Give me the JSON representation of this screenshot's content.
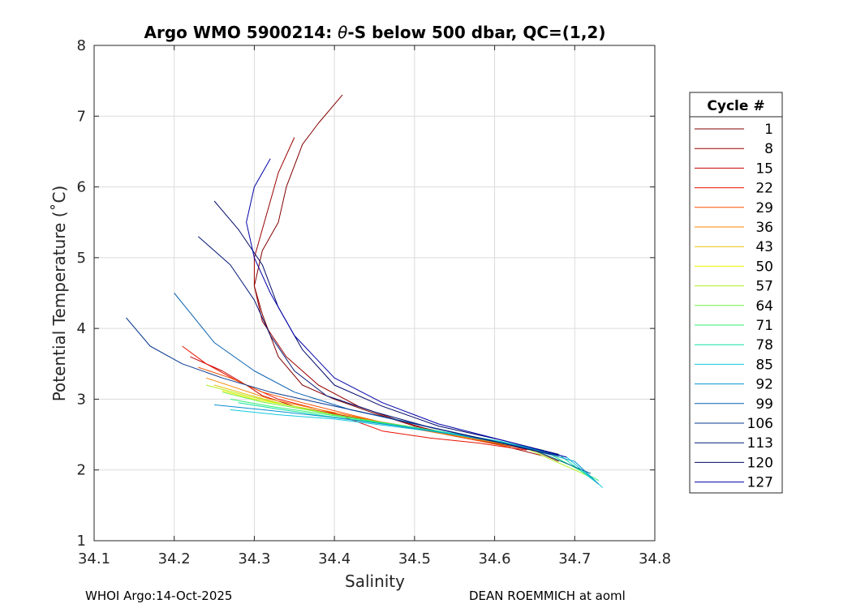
{
  "chart_data": {
    "type": "line",
    "title_parts": [
      "Argo WMO 5900214: ",
      "θ",
      "-S below 500 dbar,  QC=(1,2)"
    ],
    "xlabel": "Salinity",
    "ylabel": "Potential Temperature (˚C)",
    "xlim": [
      34.1,
      34.8
    ],
    "ylim": [
      1,
      8
    ],
    "xticks": [
      "34.1",
      "34.2",
      "34.3",
      "34.4",
      "34.5",
      "34.6",
      "34.7",
      "34.8"
    ],
    "yticks": [
      "1",
      "2",
      "3",
      "4",
      "5",
      "6",
      "7",
      "8"
    ],
    "grid": true,
    "legend": {
      "title": "Cycle #",
      "position": "outside-right",
      "entries": [
        {
          "label": "1",
          "color": "#800000"
        },
        {
          "label": "8",
          "color": "#9a0000"
        },
        {
          "label": "15",
          "color": "#c80000"
        },
        {
          "label": "22",
          "color": "#e81000"
        },
        {
          "label": "29",
          "color": "#f85000"
        },
        {
          "label": "36",
          "color": "#f88800"
        },
        {
          "label": "43",
          "color": "#e8c000"
        },
        {
          "label": "50",
          "color": "#f0f000"
        },
        {
          "label": "57",
          "color": "#b0f020"
        },
        {
          "label": "64",
          "color": "#70f040"
        },
        {
          "label": "71",
          "color": "#30f070"
        },
        {
          "label": "78",
          "color": "#10e0a0"
        },
        {
          "label": "85",
          "color": "#10c8e0"
        },
        {
          "label": "92",
          "color": "#0890d0"
        },
        {
          "label": "99",
          "color": "#0860b0"
        },
        {
          "label": "106",
          "color": "#083890"
        },
        {
          "label": "113",
          "color": "#041878"
        },
        {
          "label": "120",
          "color": "#000868"
        },
        {
          "label": "127",
          "color": "#0000a8"
        }
      ]
    },
    "series": [
      {
        "name": "1",
        "color": "#800000",
        "x": [
          34.41,
          34.38,
          34.36,
          34.35,
          34.34,
          34.33,
          34.31,
          34.3,
          34.31,
          34.33,
          34.36,
          34.4,
          34.45,
          34.5,
          34.55,
          34.6,
          34.65,
          34.68
        ],
        "y": [
          7.3,
          6.9,
          6.6,
          6.3,
          6.0,
          5.5,
          5.1,
          4.6,
          4.2,
          3.6,
          3.2,
          3.0,
          2.8,
          2.62,
          2.5,
          2.38,
          2.27,
          2.12
        ]
      },
      {
        "name": "8",
        "color": "#9a0000",
        "x": [
          34.35,
          34.33,
          34.32,
          34.31,
          34.3,
          34.3,
          34.31,
          34.34,
          34.38,
          34.43,
          34.48,
          34.54,
          34.6,
          34.66
        ],
        "y": [
          6.7,
          6.2,
          5.8,
          5.4,
          5.0,
          4.6,
          4.1,
          3.6,
          3.2,
          2.9,
          2.7,
          2.5,
          2.37,
          2.2
        ]
      },
      {
        "name": "15",
        "color": "#c80000",
        "x": [
          34.22,
          34.26,
          34.29,
          34.31,
          34.35,
          34.42,
          34.5,
          34.57,
          34.64
        ],
        "y": [
          3.6,
          3.4,
          3.2,
          3.05,
          2.9,
          2.75,
          2.6,
          2.45,
          2.3
        ]
      },
      {
        "name": "22",
        "color": "#e81000",
        "x": [
          34.21,
          34.24,
          34.28,
          34.33,
          34.4,
          34.46,
          34.52,
          34.58,
          34.64
        ],
        "y": [
          3.75,
          3.5,
          3.25,
          3.0,
          2.8,
          2.55,
          2.45,
          2.38,
          2.28
        ]
      },
      {
        "name": "29",
        "color": "#f85000",
        "x": [
          34.23,
          34.27,
          34.31,
          34.36,
          34.42,
          34.48,
          34.55,
          34.62
        ],
        "y": [
          3.45,
          3.3,
          3.1,
          2.95,
          2.78,
          2.62,
          2.48,
          2.32
        ]
      },
      {
        "name": "36",
        "color": "#f88800",
        "x": [
          34.24,
          34.28,
          34.32,
          34.37,
          34.44,
          34.5,
          34.57,
          34.64
        ],
        "y": [
          3.3,
          3.15,
          3.0,
          2.88,
          2.72,
          2.58,
          2.45,
          2.3
        ]
      },
      {
        "name": "43",
        "color": "#e8c000",
        "x": [
          34.25,
          34.29,
          34.33,
          34.38,
          34.45,
          34.52,
          34.59,
          34.66
        ],
        "y": [
          3.2,
          3.07,
          2.95,
          2.82,
          2.68,
          2.55,
          2.42,
          2.25
        ]
      },
      {
        "name": "50",
        "color": "#f0f000",
        "x": [
          34.26,
          34.3,
          34.35,
          34.41,
          34.47,
          34.54,
          34.61,
          34.68
        ],
        "y": [
          3.12,
          3.0,
          2.9,
          2.76,
          2.64,
          2.52,
          2.38,
          2.2
        ]
      },
      {
        "name": "57",
        "color": "#b0f020",
        "x": [
          34.24,
          34.29,
          34.34,
          34.4,
          34.47,
          34.55,
          34.63,
          34.72
        ],
        "y": [
          3.2,
          3.05,
          2.92,
          2.78,
          2.65,
          2.5,
          2.35,
          1.9
        ]
      },
      {
        "name": "64",
        "color": "#70f040",
        "x": [
          34.26,
          34.31,
          34.36,
          34.42,
          34.49,
          34.56,
          34.64,
          34.72
        ],
        "y": [
          3.1,
          2.96,
          2.86,
          2.74,
          2.62,
          2.48,
          2.32,
          1.95
        ]
      },
      {
        "name": "71",
        "color": "#30f070",
        "x": [
          34.27,
          34.32,
          34.38,
          34.44,
          34.51,
          34.58,
          34.66,
          34.73
        ],
        "y": [
          3.0,
          2.9,
          2.8,
          2.7,
          2.58,
          2.45,
          2.28,
          1.85
        ]
      },
      {
        "name": "78",
        "color": "#10e0a0",
        "x": [
          34.28,
          34.33,
          34.39,
          34.46,
          34.53,
          34.6,
          34.68,
          34.73
        ],
        "y": [
          2.95,
          2.86,
          2.76,
          2.66,
          2.55,
          2.42,
          2.22,
          1.8
        ]
      },
      {
        "name": "85",
        "color": "#10c8e0",
        "x": [
          34.27,
          34.33,
          34.4,
          34.47,
          34.54,
          34.61,
          34.69,
          34.735
        ],
        "y": [
          2.85,
          2.78,
          2.72,
          2.62,
          2.52,
          2.4,
          2.18,
          1.75
        ]
      },
      {
        "name": "92",
        "color": "#0890d0",
        "x": [
          34.25,
          34.32,
          34.4,
          34.48,
          34.56,
          34.63,
          34.7,
          34.73
        ],
        "y": [
          2.92,
          2.84,
          2.74,
          2.62,
          2.48,
          2.34,
          2.12,
          1.8
        ]
      },
      {
        "name": "99",
        "color": "#0860b0",
        "x": [
          34.2,
          34.25,
          34.3,
          34.35,
          34.42,
          34.5,
          34.58,
          34.65,
          34.72
        ],
        "y": [
          4.5,
          3.8,
          3.4,
          3.1,
          2.85,
          2.65,
          2.45,
          2.28,
          1.95
        ]
      },
      {
        "name": "106",
        "color": "#083890",
        "x": [
          34.14,
          34.17,
          34.21,
          34.26,
          34.32,
          34.38,
          34.45,
          34.53,
          34.61,
          34.68
        ],
        "y": [
          4.15,
          3.75,
          3.5,
          3.3,
          3.1,
          2.95,
          2.78,
          2.58,
          2.38,
          2.2
        ]
      },
      {
        "name": "113",
        "color": "#041878",
        "x": [
          34.23,
          34.27,
          34.3,
          34.32,
          34.35,
          34.39,
          34.45,
          34.52,
          34.6,
          34.67
        ],
        "y": [
          5.3,
          4.9,
          4.4,
          3.9,
          3.4,
          3.05,
          2.82,
          2.6,
          2.4,
          2.22
        ]
      },
      {
        "name": "120",
        "color": "#000868",
        "x": [
          34.25,
          34.28,
          34.31,
          34.33,
          34.36,
          34.4,
          34.46,
          34.53,
          34.61,
          34.68
        ],
        "y": [
          5.8,
          5.4,
          4.9,
          4.3,
          3.7,
          3.2,
          2.9,
          2.62,
          2.42,
          2.22
        ]
      },
      {
        "name": "127",
        "color": "#0000a8",
        "x": [
          34.32,
          34.3,
          34.29,
          34.3,
          34.32,
          34.35,
          34.4,
          34.46,
          34.53,
          34.61,
          34.69
        ],
        "y": [
          6.4,
          6.0,
          5.5,
          5.0,
          4.5,
          3.9,
          3.3,
          2.95,
          2.65,
          2.42,
          2.18
        ]
      }
    ]
  },
  "footer": {
    "left": "WHOI Argo:14-Oct-2025",
    "right": "DEAN ROEMMICH at aoml"
  }
}
